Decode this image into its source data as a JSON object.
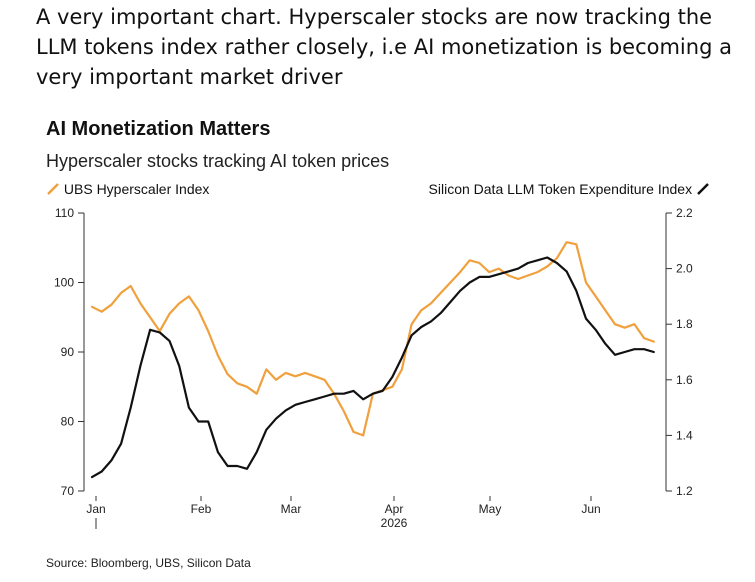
{
  "caption": "A very important chart. Hyperscaler stocks are now tracking the LLM tokens index rather closely, i.e AI monetization is becoming a very important market driver",
  "chart_data": {
    "type": "line",
    "title": "AI Monetization Matters",
    "subtitle": "Hyperscaler stocks tracking AI token prices",
    "source": "Source: Bloomberg, UBS, Silicon Data",
    "year_label": "2026",
    "x_labels": [
      "Jan",
      "Feb",
      "Mar",
      "Apr",
      "May",
      "Jun"
    ],
    "x_range": [
      0,
      175
    ],
    "y_left": {
      "range": [
        70,
        110
      ],
      "ticks": [
        "70",
        "80",
        "90",
        "100",
        "110"
      ]
    },
    "y_right": {
      "range": [
        1.2,
        2.2
      ],
      "ticks": [
        "1.2",
        "1.4",
        "1.6",
        "1.8",
        "2.0",
        "2.2"
      ]
    },
    "grid": false,
    "series": [
      {
        "name": "UBS Hyperscaler Index",
        "axis": "left",
        "color": "#f0a03c",
        "x": [
          0,
          3,
          6,
          9,
          12,
          15,
          18,
          21,
          24,
          27,
          30,
          33,
          36,
          39,
          42,
          45,
          48,
          51,
          54,
          57,
          60,
          63,
          66,
          69,
          72,
          75,
          78,
          81,
          84,
          87,
          90,
          93,
          96,
          99,
          102,
          105,
          108,
          111,
          114,
          117,
          120,
          123,
          126,
          129,
          132,
          135,
          138,
          141,
          144,
          147,
          150,
          153,
          156,
          159,
          162,
          165,
          168,
          171,
          174
        ],
        "values": [
          96.5,
          95.8,
          96.8,
          98.5,
          99.5,
          97,
          95,
          93,
          95.5,
          97,
          98,
          96,
          93,
          89.5,
          86.8,
          85.5,
          85,
          84,
          87.5,
          86,
          87,
          86.5,
          87,
          86.5,
          86,
          84,
          81.5,
          78.5,
          78,
          84,
          84.5,
          85,
          87.5,
          94,
          96,
          97,
          98.5,
          100,
          101.5,
          103.2,
          102.8,
          101.5,
          102,
          101,
          100.5,
          101,
          101.5,
          102.3,
          103.5,
          105.8,
          105.5,
          100,
          98,
          96,
          94,
          93.5,
          94,
          92,
          91.5
        ]
      },
      {
        "name": "Silicon Data LLM Token Expenditure Index",
        "axis": "right",
        "color": "#111111",
        "x": [
          0,
          3,
          6,
          9,
          12,
          15,
          18,
          21,
          24,
          27,
          30,
          33,
          36,
          39,
          42,
          45,
          48,
          51,
          54,
          57,
          60,
          63,
          66,
          69,
          72,
          75,
          78,
          81,
          84,
          87,
          90,
          93,
          96,
          99,
          102,
          105,
          108,
          111,
          114,
          117,
          120,
          123,
          126,
          129,
          132,
          135,
          138,
          141,
          144,
          147,
          150,
          153,
          156,
          159,
          162,
          165,
          168,
          171,
          174
        ],
        "values": [
          1.25,
          1.27,
          1.31,
          1.37,
          1.5,
          1.65,
          1.78,
          1.77,
          1.74,
          1.65,
          1.5,
          1.45,
          1.45,
          1.34,
          1.29,
          1.29,
          1.28,
          1.34,
          1.42,
          1.46,
          1.49,
          1.51,
          1.52,
          1.53,
          1.54,
          1.55,
          1.55,
          1.56,
          1.53,
          1.55,
          1.56,
          1.61,
          1.68,
          1.76,
          1.79,
          1.81,
          1.84,
          1.88,
          1.92,
          1.95,
          1.97,
          1.97,
          1.98,
          1.99,
          2.0,
          2.02,
          2.03,
          2.04,
          2.02,
          1.99,
          1.92,
          1.82,
          1.78,
          1.73,
          1.69,
          1.7,
          1.71,
          1.71,
          1.7
        ]
      }
    ]
  }
}
